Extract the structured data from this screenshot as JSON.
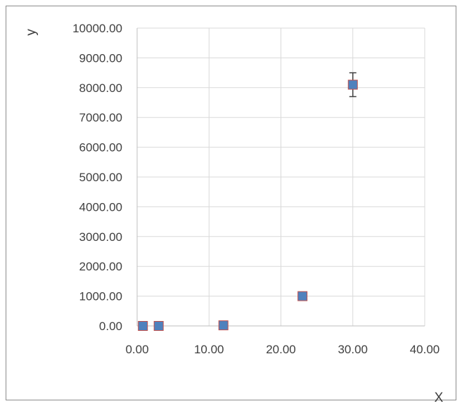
{
  "chart_data": {
    "type": "scatter",
    "title": "",
    "xlabel": "X",
    "ylabel": "y",
    "xlim": [
      0,
      40
    ],
    "ylim": [
      0,
      10000
    ],
    "x_ticks": [
      0,
      10,
      20,
      30,
      40
    ],
    "y_ticks": [
      0,
      1000,
      2000,
      3000,
      4000,
      5000,
      6000,
      7000,
      8000,
      9000,
      10000
    ],
    "x_tick_labels": [
      "0.00",
      "10.00",
      "20.00",
      "30.00",
      "40.00"
    ],
    "y_tick_labels": [
      "0.00",
      "1000.00",
      "2000.00",
      "3000.00",
      "4000.00",
      "5000.00",
      "6000.00",
      "7000.00",
      "8000.00",
      "9000.00",
      "10000.00"
    ],
    "grid": true,
    "series": [
      {
        "marker": "square",
        "color": "#4f81bd",
        "edge_color": "#c0504d",
        "points": [
          {
            "x": 0.8,
            "y": 0,
            "error": 0
          },
          {
            "x": 3,
            "y": 0,
            "error": 0
          },
          {
            "x": 12,
            "y": 20,
            "error": 0
          },
          {
            "x": 23,
            "y": 1000,
            "error": 0
          },
          {
            "x": 30,
            "y": 8100,
            "error": 400
          }
        ]
      }
    ],
    "gridline_color": "#d9d9d9",
    "axis_color": "#bfbfbf",
    "error_bar_color": "#404040"
  }
}
